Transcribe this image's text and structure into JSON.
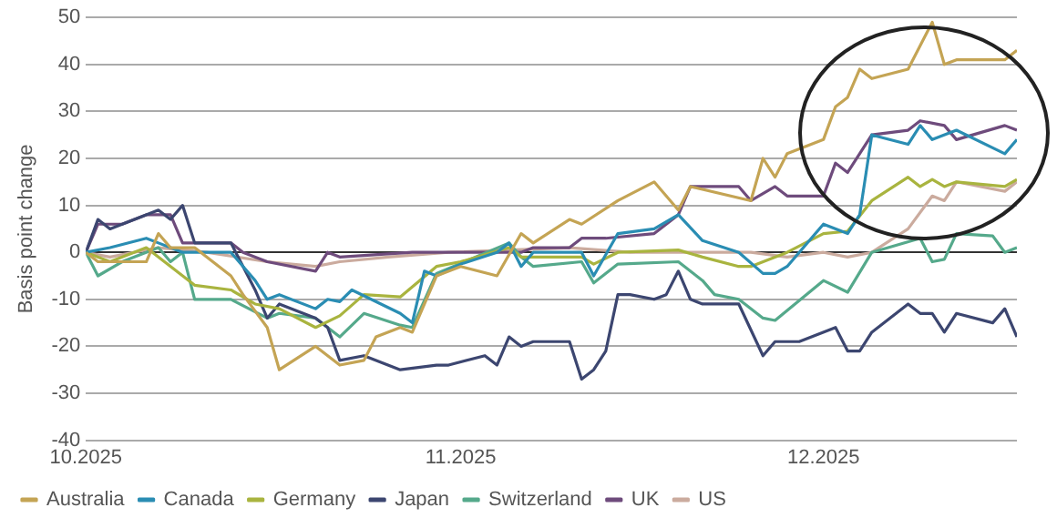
{
  "chart_data": {
    "type": "line",
    "ylabel": "Basis point change",
    "xlim": [
      "2025-10-01",
      "2025-12-17"
    ],
    "xticks": [
      {
        "value": "2025-10-01",
        "label": "10.2025"
      },
      {
        "value": "2025-11-01",
        "label": "11.2025"
      },
      {
        "value": "2025-12-01",
        "label": "12.2025"
      }
    ],
    "ylim": [
      -40,
      50
    ],
    "yticks": [
      -40,
      -30,
      -20,
      -10,
      0,
      10,
      20,
      30,
      40,
      50
    ],
    "grid": "y",
    "legend": "bottom",
    "marker": "none",
    "line_style": "solid",
    "series": [
      {
        "name": "Australia",
        "color": "#c4a454",
        "x": [
          "2025-10-01",
          "2025-10-02",
          "2025-10-06",
          "2025-10-07",
          "2025-10-08",
          "2025-10-10",
          "2025-10-13",
          "2025-10-14",
          "2025-10-16",
          "2025-10-17",
          "2025-10-20",
          "2025-10-22",
          "2025-10-24",
          "2025-10-25",
          "2025-10-27",
          "2025-10-28",
          "2025-10-30",
          "2025-11-01",
          "2025-11-04",
          "2025-11-06",
          "2025-11-07",
          "2025-11-10",
          "2025-11-11",
          "2025-11-14",
          "2025-11-17",
          "2025-11-19",
          "2025-11-20",
          "2025-11-25",
          "2025-11-26",
          "2025-11-27",
          "2025-11-28",
          "2025-12-01",
          "2025-12-02",
          "2025-12-03",
          "2025-12-04",
          "2025-12-05",
          "2025-12-08",
          "2025-12-10",
          "2025-12-11",
          "2025-12-12",
          "2025-12-16",
          "2025-12-17"
        ],
        "values": [
          0,
          -2,
          -2,
          4,
          1,
          1,
          -5,
          -9,
          -16,
          -25,
          -20,
          -24,
          -23,
          -18,
          -16,
          -17,
          -5,
          -3,
          -5,
          4,
          2,
          7,
          6,
          11,
          15,
          9,
          14,
          11,
          20,
          16,
          21,
          24,
          31,
          33,
          39,
          37,
          39,
          49,
          40,
          41,
          41,
          43
        ]
      },
      {
        "name": "Canada",
        "color": "#2a8db3",
        "x": [
          "2025-10-01",
          "2025-10-03",
          "2025-10-06",
          "2025-10-07",
          "2025-10-08",
          "2025-10-09",
          "2025-10-13",
          "2025-10-15",
          "2025-10-16",
          "2025-10-17",
          "2025-10-20",
          "2025-10-21",
          "2025-10-22",
          "2025-10-23",
          "2025-10-27",
          "2025-10-28",
          "2025-10-29",
          "2025-10-30",
          "2025-11-01",
          "2025-11-04",
          "2025-11-05",
          "2025-11-06",
          "2025-11-07",
          "2025-11-11",
          "2025-11-12",
          "2025-11-14",
          "2025-11-17",
          "2025-11-19",
          "2025-11-21",
          "2025-11-24",
          "2025-11-26",
          "2025-11-27",
          "2025-11-28",
          "2025-12-01",
          "2025-12-03",
          "2025-12-04",
          "2025-12-05",
          "2025-12-08",
          "2025-12-09",
          "2025-12-10",
          "2025-12-12",
          "2025-12-16",
          "2025-12-17"
        ],
        "values": [
          0,
          1,
          3,
          2,
          1,
          0,
          0,
          -6,
          -10,
          -9,
          -12,
          -10,
          -10.5,
          -8,
          -13,
          -15,
          -4,
          -5,
          -2.5,
          0,
          2,
          -3,
          0,
          0,
          -5,
          4,
          5,
          8,
          2.5,
          0,
          -4.5,
          -4.5,
          -3,
          6,
          4,
          8,
          25,
          23,
          27,
          24,
          26,
          21,
          24
        ]
      },
      {
        "name": "Germany",
        "color": "#a9b43f",
        "x": [
          "2025-10-01",
          "2025-10-03",
          "2025-10-06",
          "2025-10-10",
          "2025-10-13",
          "2025-10-15",
          "2025-10-17",
          "2025-10-20",
          "2025-10-22",
          "2025-10-24",
          "2025-10-27",
          "2025-10-30",
          "2025-11-01",
          "2025-11-05",
          "2025-11-06",
          "2025-11-11",
          "2025-11-12",
          "2025-11-14",
          "2025-11-19",
          "2025-11-21",
          "2025-11-24",
          "2025-11-25",
          "2025-11-28",
          "2025-12-01",
          "2025-12-03",
          "2025-12-05",
          "2025-12-08",
          "2025-12-09",
          "2025-12-10",
          "2025-12-11",
          "2025-12-12",
          "2025-12-16",
          "2025-12-17"
        ],
        "values": [
          0,
          -2,
          1,
          -7,
          -8,
          -11,
          -12,
          -16,
          -13.5,
          -9,
          -9.5,
          -3,
          -2,
          1,
          -1,
          -1,
          -2.5,
          0,
          0.5,
          -1,
          -3,
          -3,
          0,
          4,
          4.5,
          11,
          16,
          14,
          15.5,
          14,
          15,
          14,
          15.5
        ]
      },
      {
        "name": "Japan",
        "color": "#3c4670",
        "x": [
          "2025-10-01",
          "2025-10-02",
          "2025-10-03",
          "2025-10-07",
          "2025-10-08",
          "2025-10-09",
          "2025-10-10",
          "2025-10-13",
          "2025-10-15",
          "2025-10-16",
          "2025-10-17",
          "2025-10-20",
          "2025-10-21",
          "2025-10-22",
          "2025-10-24",
          "2025-10-27",
          "2025-10-30",
          "2025-10-31",
          "2025-11-03",
          "2025-11-04",
          "2025-11-05",
          "2025-11-06",
          "2025-11-07",
          "2025-11-08",
          "2025-11-10",
          "2025-11-11",
          "2025-11-12",
          "2025-11-13",
          "2025-11-14",
          "2025-11-15",
          "2025-11-17",
          "2025-11-18",
          "2025-11-19",
          "2025-11-20",
          "2025-11-21",
          "2025-11-24",
          "2025-11-26",
          "2025-11-27",
          "2025-11-29",
          "2025-12-02",
          "2025-12-03",
          "2025-12-04",
          "2025-12-05",
          "2025-12-08",
          "2025-12-09",
          "2025-12-10",
          "2025-12-11",
          "2025-12-12",
          "2025-12-15",
          "2025-12-16",
          "2025-12-17"
        ],
        "values": [
          0,
          7,
          5,
          9,
          7,
          10,
          2,
          2,
          -8,
          -14,
          -11,
          -14,
          -16,
          -23,
          -22,
          -25,
          -24,
          -24,
          -22,
          -24,
          -18,
          -20,
          -19,
          -19,
          -19,
          -27,
          -25,
          -21,
          -9,
          -9,
          -10,
          -9,
          -4,
          -10,
          -11,
          -11,
          -22,
          -19,
          -19,
          -16,
          -21,
          -21,
          -17,
          -11,
          -13,
          -13,
          -17,
          -13,
          -15,
          -12,
          -18
        ]
      },
      {
        "name": "Switzerland",
        "color": "#55a98b",
        "x": [
          "2025-10-01",
          "2025-10-02",
          "2025-10-04",
          "2025-10-07",
          "2025-10-08",
          "2025-10-09",
          "2025-10-10",
          "2025-10-13",
          "2025-10-16",
          "2025-10-17",
          "2025-10-20",
          "2025-10-22",
          "2025-10-24",
          "2025-10-27",
          "2025-10-28",
          "2025-10-30",
          "2025-11-05",
          "2025-11-06",
          "2025-11-07",
          "2025-11-11",
          "2025-11-12",
          "2025-11-14",
          "2025-11-19",
          "2025-11-21",
          "2025-11-22",
          "2025-11-24",
          "2025-11-26",
          "2025-11-27",
          "2025-12-01",
          "2025-12-03",
          "2025-12-05",
          "2025-12-09",
          "2025-12-10",
          "2025-12-11",
          "2025-12-12",
          "2025-12-15",
          "2025-12-16",
          "2025-12-17"
        ],
        "values": [
          0,
          -5,
          -2,
          1,
          -2,
          0,
          -10,
          -10,
          -14,
          -13,
          -14,
          -18,
          -13,
          -15.5,
          -16,
          -4.5,
          2,
          -1,
          -3,
          -2,
          -6.5,
          -2.5,
          -2,
          -6,
          -9,
          -10,
          -14,
          -14.5,
          -6,
          -8.5,
          0,
          3,
          -2,
          -1.5,
          4,
          3.5,
          0,
          1
        ]
      },
      {
        "name": "UK",
        "color": "#6e4b7c",
        "x": [
          "2025-10-01",
          "2025-10-02",
          "2025-10-04",
          "2025-10-06",
          "2025-10-08",
          "2025-10-09",
          "2025-10-13",
          "2025-10-14",
          "2025-10-16",
          "2025-10-20",
          "2025-10-21",
          "2025-10-22",
          "2025-10-28",
          "2025-11-04",
          "2025-11-06",
          "2025-11-07",
          "2025-11-10",
          "2025-11-11",
          "2025-11-13",
          "2025-11-17",
          "2025-11-19",
          "2025-11-20",
          "2025-11-21",
          "2025-11-24",
          "2025-11-25",
          "2025-11-27",
          "2025-11-28",
          "2025-12-01",
          "2025-12-02",
          "2025-12-03",
          "2025-12-05",
          "2025-12-08",
          "2025-12-09",
          "2025-12-11",
          "2025-12-12",
          "2025-12-16",
          "2025-12-17"
        ],
        "values": [
          0,
          6,
          6,
          8,
          8,
          2,
          2,
          0,
          -2,
          -4,
          0,
          -1,
          0,
          0,
          0,
          1,
          1,
          3,
          3,
          4,
          8,
          14,
          14,
          14,
          11,
          14,
          12,
          12,
          19,
          17,
          25,
          26,
          28,
          27,
          24,
          27,
          26
        ]
      },
      {
        "name": "US",
        "color": "#cbab9e",
        "x": [
          "2025-10-01",
          "2025-10-03",
          "2025-10-07",
          "2025-10-11",
          "2025-10-16",
          "2025-10-20",
          "2025-10-22",
          "2025-10-26",
          "2025-10-31",
          "2025-11-10",
          "2025-11-15",
          "2025-11-20",
          "2025-11-25",
          "2025-11-28",
          "2025-12-01",
          "2025-12-03",
          "2025-12-05",
          "2025-12-08",
          "2025-12-10",
          "2025-12-11",
          "2025-12-12",
          "2025-12-16",
          "2025-12-17"
        ],
        "values": [
          0,
          -1,
          1,
          0,
          -2,
          -3,
          -2,
          -1,
          0,
          1,
          0,
          0,
          0,
          -1,
          0,
          -1,
          0,
          5,
          12,
          11,
          15,
          13,
          15
        ]
      }
    ]
  }
}
